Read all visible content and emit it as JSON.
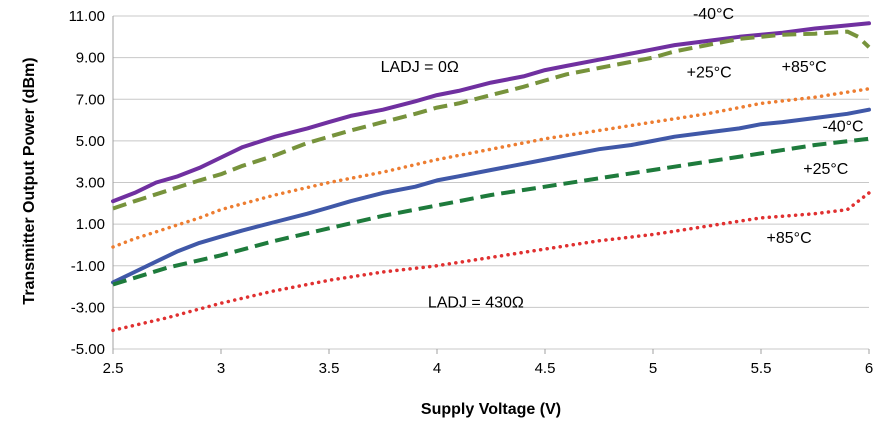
{
  "chart_data": {
    "type": "line",
    "title": "",
    "xlabel": "Supply Voltage (V)",
    "ylabel": "Transmitter Output Power (dBm)",
    "xlim": [
      2.5,
      6
    ],
    "ylim": [
      -5,
      11
    ],
    "x_ticks": [
      "2.5",
      "3",
      "3.5",
      "4",
      "4.5",
      "5",
      "5.5",
      "6"
    ],
    "y_ticks": [
      "-5.00",
      "-3.00",
      "-1.00",
      "1.00",
      "3.00",
      "5.00",
      "7.00",
      "9.00",
      "11.00"
    ],
    "grid": "horizontal",
    "series": [
      {
        "key": "ladj0_m40",
        "color": "#7030a0",
        "dash": "solid",
        "x": [
          2.5,
          2.6,
          2.7,
          2.8,
          2.9,
          3.0,
          3.1,
          3.25,
          3.4,
          3.5,
          3.6,
          3.75,
          3.9,
          4.0,
          4.1,
          4.25,
          4.4,
          4.5,
          4.6,
          4.75,
          4.9,
          5.0,
          5.1,
          5.25,
          5.4,
          5.5,
          5.6,
          5.75,
          5.9,
          6.0
        ],
        "y": [
          2.1,
          2.5,
          3.0,
          3.3,
          3.7,
          4.2,
          4.7,
          5.2,
          5.6,
          5.9,
          6.2,
          6.5,
          6.9,
          7.2,
          7.4,
          7.8,
          8.1,
          8.4,
          8.6,
          8.9,
          9.2,
          9.4,
          9.6,
          9.8,
          10.0,
          10.1,
          10.2,
          10.4,
          10.55,
          10.65
        ]
      },
      {
        "key": "ladj0_p25",
        "color": "#77933c",
        "dash": "dash",
        "x": [
          2.5,
          2.6,
          2.75,
          2.9,
          3.0,
          3.1,
          3.25,
          3.4,
          3.5,
          3.6,
          3.75,
          3.9,
          4.0,
          4.1,
          4.25,
          4.4,
          4.5,
          4.6,
          4.75,
          4.9,
          5.0,
          5.1,
          5.25,
          5.4,
          5.5,
          5.6,
          5.75,
          5.9,
          5.95,
          6.0
        ],
        "y": [
          1.75,
          2.1,
          2.6,
          3.1,
          3.4,
          3.8,
          4.3,
          4.9,
          5.2,
          5.5,
          5.9,
          6.3,
          6.6,
          6.8,
          7.2,
          7.6,
          7.9,
          8.2,
          8.5,
          8.8,
          9.0,
          9.3,
          9.6,
          9.9,
          10.0,
          10.1,
          10.15,
          10.25,
          10.0,
          9.5
        ]
      },
      {
        "key": "ladj0_p85",
        "color": "#ed7d31",
        "dash": "dot",
        "x": [
          2.5,
          2.6,
          2.75,
          2.9,
          3.0,
          3.25,
          3.5,
          3.75,
          4.0,
          4.25,
          4.5,
          4.75,
          5.0,
          5.25,
          5.5,
          5.75,
          6.0
        ],
        "y": [
          -0.1,
          0.3,
          0.8,
          1.3,
          1.7,
          2.4,
          3.0,
          3.5,
          4.1,
          4.6,
          5.1,
          5.5,
          5.9,
          6.3,
          6.8,
          7.1,
          7.5
        ]
      },
      {
        "key": "ladj430_m40",
        "color": "#4058a8",
        "dash": "solid",
        "x": [
          2.5,
          2.6,
          2.7,
          2.8,
          2.9,
          3.0,
          3.1,
          3.25,
          3.4,
          3.5,
          3.6,
          3.75,
          3.9,
          4.0,
          4.1,
          4.25,
          4.4,
          4.5,
          4.6,
          4.75,
          4.9,
          5.0,
          5.1,
          5.25,
          5.4,
          5.5,
          5.6,
          5.75,
          5.9,
          6.0
        ],
        "y": [
          -1.8,
          -1.3,
          -0.8,
          -0.3,
          0.1,
          0.4,
          0.7,
          1.1,
          1.5,
          1.8,
          2.1,
          2.5,
          2.8,
          3.1,
          3.3,
          3.6,
          3.9,
          4.1,
          4.3,
          4.6,
          4.8,
          5.0,
          5.2,
          5.4,
          5.6,
          5.8,
          5.9,
          6.1,
          6.3,
          6.5
        ]
      },
      {
        "key": "ladj430_p25",
        "color": "#1e7b3c",
        "dash": "dash",
        "x": [
          2.5,
          2.75,
          3.0,
          3.25,
          3.5,
          3.75,
          4.0,
          4.25,
          4.5,
          4.75,
          5.0,
          5.25,
          5.5,
          5.75,
          6.0
        ],
        "y": [
          -1.9,
          -1.1,
          -0.5,
          0.2,
          0.8,
          1.4,
          1.9,
          2.4,
          2.8,
          3.2,
          3.6,
          4.0,
          4.4,
          4.8,
          5.1
        ]
      },
      {
        "key": "ladj430_p85",
        "color": "#e03030",
        "dash": "dot",
        "x": [
          2.5,
          2.75,
          3.0,
          3.25,
          3.5,
          3.75,
          4.0,
          4.25,
          4.5,
          4.75,
          5.0,
          5.25,
          5.5,
          5.75,
          5.9,
          6.0
        ],
        "y": [
          -4.1,
          -3.5,
          -2.8,
          -2.2,
          -1.7,
          -1.3,
          -1.0,
          -0.6,
          -0.2,
          0.2,
          0.5,
          0.9,
          1.3,
          1.5,
          1.7,
          2.5
        ]
      }
    ],
    "annotations": [
      {
        "key": "ladj0",
        "text": "LADJ = 0Ω",
        "x": 3.92,
        "y": 8.3
      },
      {
        "key": "ladj0_m40",
        "text": "-40°C",
        "x": 5.28,
        "y": 10.85
      },
      {
        "key": "ladj0_p25",
        "text": "+25°C",
        "x": 5.26,
        "y": 8.05
      },
      {
        "key": "ladj0_p85",
        "text": "+85°C",
        "x": 5.7,
        "y": 8.3
      },
      {
        "key": "ladj430_m40",
        "text": "-40°C",
        "x": 5.88,
        "y": 5.45
      },
      {
        "key": "ladj430_p25",
        "text": "+25°C",
        "x": 5.8,
        "y": 3.4
      },
      {
        "key": "ladj430_p85",
        "text": "+85°C",
        "x": 5.63,
        "y": 0.1
      },
      {
        "key": "ladj430",
        "text": "LADJ = 430Ω",
        "x": 4.18,
        "y": -3.0
      }
    ]
  }
}
